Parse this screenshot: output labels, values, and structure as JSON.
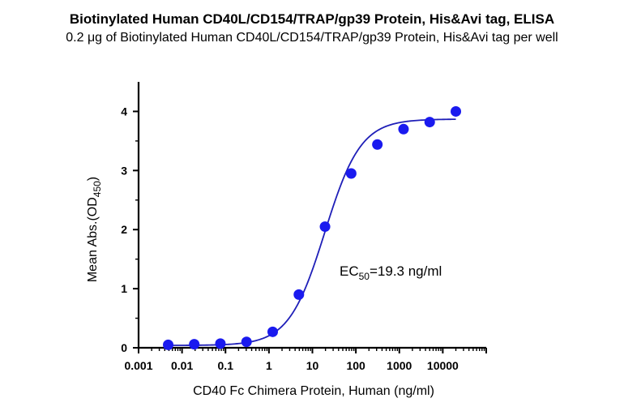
{
  "chart_data": {
    "type": "scatter",
    "title": "Biotinylated Human CD40L/CD154/TRAP/gp39 Protein, His&Avi tag, ELISA",
    "subtitle": "0.2 μg of Biotinylated Human CD40L/CD154/TRAP/gp39 Protein, His&Avi tag per well",
    "xlabel": "CD40 Fc Chimera Protein, Human (ng/ml)",
    "ylabel": {
      "main": "Mean Abs.(OD",
      "sub": "450",
      "end": ")"
    },
    "xscale": "log10",
    "xlim": [
      0.001,
      100000
    ],
    "ylim": [
      0,
      4.5
    ],
    "x_ticks": [
      0.001,
      0.01,
      0.1,
      1,
      10,
      100,
      1000,
      10000
    ],
    "x_tick_labels": [
      "0.001",
      "0.01",
      "0.1",
      "1",
      "10",
      "100",
      "1000",
      "10000"
    ],
    "y_ticks": [
      0,
      1,
      2,
      3,
      4
    ],
    "y_tick_labels": [
      "0",
      "1",
      "2",
      "3",
      "4"
    ],
    "points": {
      "x": [
        0.0048,
        0.0191,
        0.0763,
        0.305,
        1.22,
        4.88,
        19.5,
        78.1,
        312.5,
        1250,
        5000,
        20000
      ],
      "y": [
        0.05,
        0.06,
        0.07,
        0.1,
        0.27,
        0.9,
        2.05,
        2.95,
        3.44,
        3.7,
        3.82,
        4.0
      ]
    },
    "fit": {
      "model": "4PL",
      "bottom": 0.04,
      "top": 3.87,
      "ec50": 19.3,
      "hill": 1.05
    },
    "annotation": {
      "main": "EC",
      "sub": "50",
      "end": "=19.3 ng/ml"
    },
    "colors": {
      "points": "#1a1aef",
      "curve": "#1f1fb8",
      "axes": "#000000"
    },
    "grid": false,
    "legend": "none"
  }
}
